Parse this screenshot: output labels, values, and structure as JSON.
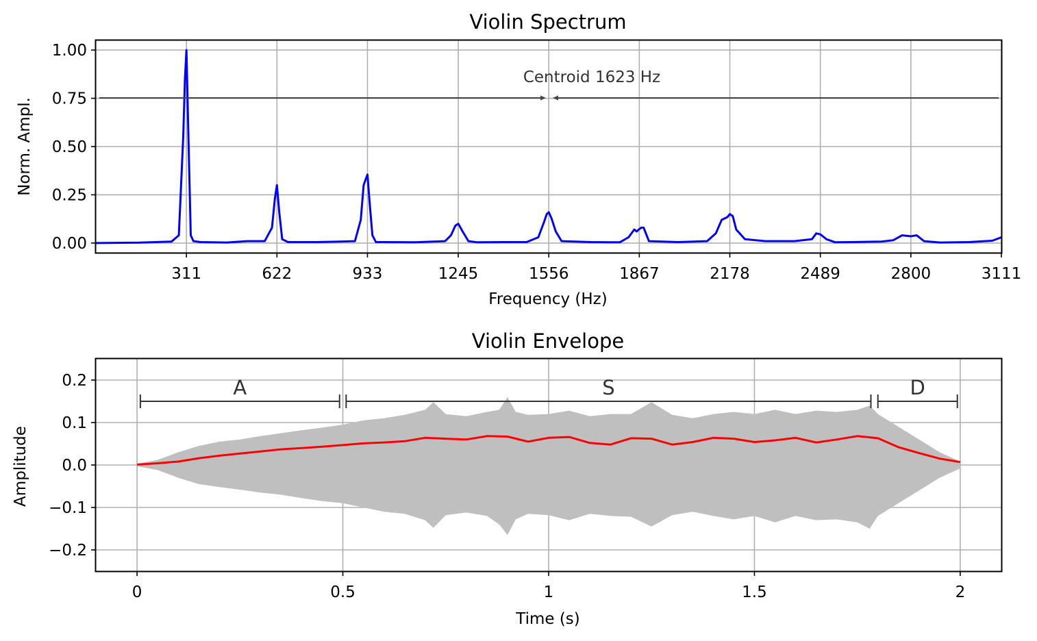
{
  "chart_data": [
    {
      "type": "line",
      "title": "Violin Spectrum",
      "xlabel": "Frequency (Hz)",
      "ylabel": "Norm. Ampl.",
      "xlim": [
        0,
        3111
      ],
      "ylim": [
        -0.05,
        1.05
      ],
      "grid": true,
      "xticks": [
        311,
        622,
        933,
        1245,
        1556,
        1867,
        2178,
        2489,
        2800,
        3111
      ],
      "xtick_labels": [
        "311",
        "622",
        "933",
        "1245",
        "1556",
        "1867",
        "2178",
        "2489",
        "2800",
        "3111"
      ],
      "yticks": [
        0,
        0.25,
        0.5,
        0.75,
        1.0
      ],
      "ytick_labels": [
        "0.00",
        "0.25",
        "0.50",
        "0.75",
        "1.00"
      ],
      "series": [
        {
          "color": "#0000ff",
          "x": [
            0,
            150,
            260,
            285,
            300,
            306,
            311,
            318,
            326,
            335,
            360,
            450,
            520,
            580,
            605,
            615,
            622,
            630,
            640,
            660,
            760,
            840,
            890,
            910,
            920,
            927,
            933,
            940,
            950,
            962,
            990,
            1100,
            1200,
            1220,
            1235,
            1245,
            1260,
            1280,
            1310,
            1400,
            1480,
            1520,
            1540,
            1549,
            1556,
            1565,
            1580,
            1600,
            1700,
            1800,
            1830,
            1850,
            1858,
            1865,
            1874,
            1882,
            1900,
            2000,
            2100,
            2130,
            2150,
            2170,
            2178,
            2188,
            2200,
            2230,
            2300,
            2400,
            2460,
            2475,
            2489,
            2510,
            2540,
            2600,
            2700,
            2740,
            2770,
            2800,
            2820,
            2845,
            2900,
            3000,
            3080,
            3111
          ],
          "y": [
            0.0,
            0.002,
            0.008,
            0.04,
            0.55,
            0.85,
            1.0,
            0.55,
            0.04,
            0.01,
            0.005,
            0.003,
            0.01,
            0.01,
            0.08,
            0.23,
            0.3,
            0.16,
            0.02,
            0.005,
            0.005,
            0.008,
            0.01,
            0.12,
            0.3,
            0.33,
            0.355,
            0.22,
            0.04,
            0.005,
            0.005,
            0.004,
            0.01,
            0.04,
            0.09,
            0.1,
            0.06,
            0.01,
            0.004,
            0.005,
            0.005,
            0.03,
            0.11,
            0.15,
            0.16,
            0.13,
            0.06,
            0.01,
            0.005,
            0.004,
            0.03,
            0.07,
            0.06,
            0.07,
            0.08,
            0.08,
            0.01,
            0.005,
            0.01,
            0.05,
            0.12,
            0.135,
            0.15,
            0.14,
            0.07,
            0.02,
            0.01,
            0.01,
            0.02,
            0.05,
            0.045,
            0.02,
            0.004,
            0.005,
            0.008,
            0.015,
            0.04,
            0.035,
            0.04,
            0.01,
            0.003,
            0.005,
            0.012,
            0.03
          ]
        }
      ],
      "annotations": [
        {
          "text": "Centroid 1623 Hz",
          "value_hz": 1623,
          "y": 0.75,
          "arrow": "double-headed, centroid marker"
        }
      ]
    },
    {
      "type": "area",
      "title": "Violin Envelope",
      "xlabel": "Time (s)",
      "ylabel": "Amplitude",
      "xlim": [
        -0.1,
        2.1
      ],
      "ylim": [
        -0.25,
        0.25
      ],
      "grid": true,
      "xticks": [
        0,
        0.5,
        1,
        1.5,
        2
      ],
      "xtick_labels": [
        "0",
        "0.5",
        "1",
        "1.5",
        "2"
      ],
      "yticks": [
        -0.2,
        -0.1,
        0.0,
        0.1,
        0.2
      ],
      "ytick_labels": [
        "−0.2",
        "−0.1",
        "0.0",
        "0.1",
        "0.2"
      ],
      "waveform": {
        "color": "#bfbfbf",
        "t": [
          0,
          0.05,
          0.1,
          0.15,
          0.2,
          0.25,
          0.3,
          0.35,
          0.4,
          0.45,
          0.5,
          0.55,
          0.6,
          0.65,
          0.7,
          0.72,
          0.75,
          0.8,
          0.85,
          0.88,
          0.9,
          0.92,
          0.95,
          1.0,
          1.05,
          1.1,
          1.15,
          1.2,
          1.25,
          1.3,
          1.35,
          1.4,
          1.45,
          1.5,
          1.55,
          1.6,
          1.65,
          1.7,
          1.75,
          1.78,
          1.8,
          1.85,
          1.9,
          1.95,
          2.0
        ],
        "upper": [
          0.003,
          0.012,
          0.03,
          0.045,
          0.055,
          0.06,
          0.068,
          0.075,
          0.082,
          0.088,
          0.095,
          0.105,
          0.11,
          0.118,
          0.13,
          0.148,
          0.12,
          0.115,
          0.125,
          0.13,
          0.16,
          0.125,
          0.118,
          0.12,
          0.128,
          0.115,
          0.12,
          0.12,
          0.148,
          0.118,
          0.11,
          0.12,
          0.125,
          0.12,
          0.13,
          0.12,
          0.128,
          0.125,
          0.13,
          0.14,
          0.12,
          0.09,
          0.06,
          0.03,
          0.008
        ],
        "lower": [
          -0.003,
          -0.012,
          -0.03,
          -0.045,
          -0.052,
          -0.058,
          -0.065,
          -0.07,
          -0.078,
          -0.085,
          -0.09,
          -0.1,
          -0.11,
          -0.115,
          -0.13,
          -0.148,
          -0.118,
          -0.112,
          -0.12,
          -0.14,
          -0.165,
          -0.128,
          -0.115,
          -0.118,
          -0.13,
          -0.115,
          -0.12,
          -0.122,
          -0.145,
          -0.118,
          -0.11,
          -0.12,
          -0.128,
          -0.12,
          -0.135,
          -0.12,
          -0.13,
          -0.128,
          -0.135,
          -0.15,
          -0.12,
          -0.09,
          -0.06,
          -0.03,
          -0.008
        ]
      },
      "series": [
        {
          "color": "#ff0000",
          "x": [
            0,
            0.05,
            0.1,
            0.15,
            0.2,
            0.25,
            0.3,
            0.35,
            0.4,
            0.45,
            0.5,
            0.55,
            0.6,
            0.65,
            0.7,
            0.75,
            0.8,
            0.85,
            0.9,
            0.95,
            1.0,
            1.05,
            1.1,
            1.15,
            1.2,
            1.25,
            1.3,
            1.35,
            1.4,
            1.45,
            1.5,
            1.55,
            1.6,
            1.65,
            1.7,
            1.75,
            1.8,
            1.85,
            1.9,
            1.95,
            2.0
          ],
          "y": [
            0.001,
            0.004,
            0.008,
            0.016,
            0.022,
            0.027,
            0.032,
            0.037,
            0.04,
            0.043,
            0.047,
            0.051,
            0.053,
            0.056,
            0.064,
            0.062,
            0.06,
            0.068,
            0.067,
            0.055,
            0.064,
            0.066,
            0.052,
            0.048,
            0.063,
            0.062,
            0.048,
            0.054,
            0.064,
            0.062,
            0.054,
            0.058,
            0.064,
            0.053,
            0.06,
            0.068,
            0.063,
            0.042,
            0.028,
            0.015,
            0.007
          ]
        }
      ],
      "phases": [
        {
          "label": "A",
          "start": 0.008,
          "end": 0.492,
          "y": 0.15
        },
        {
          "label": "S",
          "start": 0.508,
          "end": 1.783,
          "y": 0.15
        },
        {
          "label": "D",
          "start": 1.8,
          "end": 1.993,
          "y": 0.15
        }
      ]
    }
  ]
}
